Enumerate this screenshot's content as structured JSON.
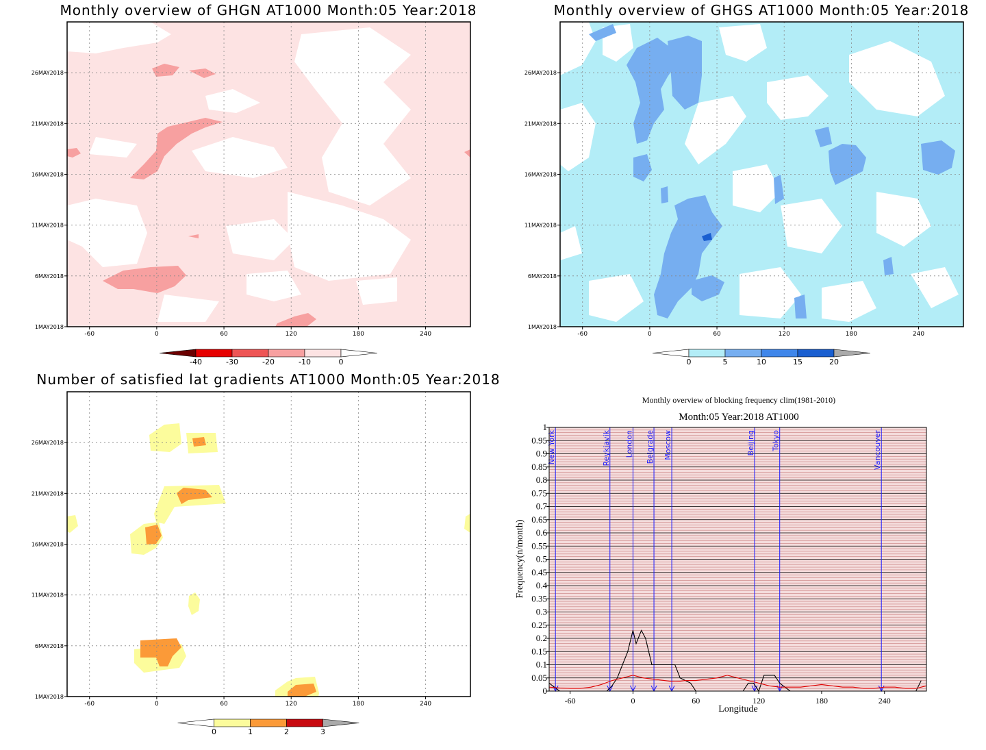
{
  "panels": {
    "ghgn": {
      "title": "Monthly overview of GHGN AT1000 Month:05 Year:2018",
      "colorbar": {
        "labels": [
          "-40",
          "-30",
          "-20",
          "-10",
          "0"
        ],
        "colors": [
          "#6b0000",
          "#e60000",
          "#ee5555",
          "#f7a0a0",
          "#fde3e3",
          "#ffffff"
        ]
      }
    },
    "ghgs": {
      "title": "Monthly overview of GHGS AT1000 Month:05 Year:2018",
      "colorbar": {
        "labels": [
          "0",
          "5",
          "10",
          "15",
          "20"
        ],
        "colors": [
          "#ffffff",
          "#b3edf7",
          "#76aef0",
          "#3f86ea",
          "#1a5fd0",
          "#aaaaaa"
        ]
      }
    },
    "nsat": {
      "title": "Number of satisfied lat gradients AT1000 Month:05 Year:2018",
      "colorbar": {
        "labels": [
          "0",
          "1",
          "2",
          "3"
        ],
        "colors": [
          "#ffffff",
          "#fcfc9c",
          "#fb9a38",
          "#c80a10",
          "#aaaaaa"
        ]
      }
    },
    "freq": {
      "title_line1": "Monthly overview of blocking frequency clim(1981-2010)",
      "title_line2": "Month:05 Year:2018  AT1000",
      "xlabel": "Longitude",
      "ylabel": "Frequency(n/month)"
    }
  },
  "map_axes": {
    "date_ticks": [
      "1MAY2018",
      "6MAY2018",
      "11MAY2018",
      "16MAY2018",
      "21MAY2018",
      "26MAY2018"
    ],
    "lon_ticks": [
      "-60",
      "0",
      "60",
      "120",
      "180",
      "240"
    ],
    "lon_range": [
      -80,
      280
    ],
    "day_range": [
      1,
      31
    ]
  },
  "chart_data": [
    {
      "type": "heatmap",
      "title": "Monthly overview of GHGN AT1000 Month:05 Year:2018",
      "x_range": [
        -80,
        280
      ],
      "x_ticks": [
        -60,
        0,
        60,
        120,
        180,
        240
      ],
      "y_ticks": [
        "1MAY2018",
        "6MAY2018",
        "11MAY2018",
        "16MAY2018",
        "21MAY2018",
        "26MAY2018"
      ],
      "levels": [
        -40,
        -30,
        -20,
        -10,
        0
      ],
      "background_level": "-10 to 0",
      "regions": [
        {
          "lon": 0,
          "date": "6MAY2018",
          "level": "-20 to -10"
        },
        {
          "lon": 20,
          "date": "18MAY2018",
          "level": "-20 to -10"
        },
        {
          "lon": 50,
          "date": "25MAY2018",
          "level": "-20 to -10"
        },
        {
          "lon": 125,
          "date": "1MAY2018",
          "level": "-20 to -10"
        },
        {
          "lon": -75,
          "date": "18MAY2018",
          "level": "-20 to -10"
        }
      ]
    },
    {
      "type": "heatmap",
      "title": "Monthly overview of GHGS AT1000 Month:05 Year:2018",
      "x_range": [
        -80,
        280
      ],
      "x_ticks": [
        -60,
        0,
        60,
        120,
        180,
        240
      ],
      "y_ticks": [
        "1MAY2018",
        "6MAY2018",
        "11MAY2018",
        "16MAY2018",
        "21MAY2018",
        "26MAY2018"
      ],
      "levels": [
        0,
        5,
        10,
        15,
        20
      ],
      "background_level": "0 to 5",
      "regions": [
        {
          "lon": 30,
          "date": "24MAY2018",
          "level": "5 to 10"
        },
        {
          "lon": 40,
          "date": "10MAY2018",
          "level": "5 to 10"
        },
        {
          "lon": 50,
          "date": "11MAY2018",
          "level": "10 to 15"
        },
        {
          "lon": 140,
          "date": "17MAY2018",
          "level": "5 to 10"
        },
        {
          "lon": 265,
          "date": "17MAY2018",
          "level": "5 to 10"
        }
      ]
    },
    {
      "type": "heatmap",
      "title": "Number of satisfied lat gradients AT1000 Month:05 Year:2018",
      "x_range": [
        -80,
        280
      ],
      "x_ticks": [
        -60,
        0,
        60,
        120,
        180,
        240
      ],
      "y_ticks": [
        "1MAY2018",
        "6MAY2018",
        "11MAY2018",
        "16MAY2018",
        "21MAY2018",
        "26MAY2018"
      ],
      "levels": [
        0,
        1,
        2,
        3
      ],
      "regions": [
        {
          "lon": 5,
          "date": "6MAY2018",
          "level": "1 to 2"
        },
        {
          "lon": 40,
          "date": "21MAY2018",
          "level": "1 to 2"
        },
        {
          "lon": 38,
          "date": "26MAY2018",
          "level": "1 to 2"
        },
        {
          "lon": -5,
          "date": "17MAY2018",
          "level": "1 to 2"
        },
        {
          "lon": 130,
          "date": "1MAY2018",
          "level": "1 to 2"
        },
        {
          "lon": 35,
          "date": "11MAY2018",
          "level": "0 to 1"
        }
      ]
    },
    {
      "type": "line",
      "title": "Monthly overview of blocking frequency clim(1981-2010)",
      "subtitle": "Month:05 Year:2018  AT1000",
      "xlabel": "Longitude",
      "ylabel": "Frequency(n/month)",
      "xlim": [
        -80,
        280
      ],
      "ylim": [
        0,
        1
      ],
      "x_ticks": [
        -60,
        0,
        60,
        120,
        180,
        240
      ],
      "y_ticks": [
        "0",
        "0.05",
        "0.1",
        "0.15",
        "0.2",
        "0.25",
        "0.3",
        "0.35",
        "0.4",
        "0.45",
        "0.5",
        "0.55",
        "0.6",
        "0.65",
        "0.7",
        "0.75",
        "0.8",
        "0.85",
        "0.9",
        "0.95",
        "1"
      ],
      "series": [
        {
          "color": "#000000",
          "x": [
            -80,
            -70,
            -60,
            -50,
            -40,
            -30,
            -25,
            -20,
            -15,
            -10,
            -5,
            0,
            3,
            5,
            8,
            12,
            15,
            18,
            20,
            25,
            30,
            40,
            45,
            55,
            60,
            70,
            80,
            90,
            100,
            105,
            110,
            115,
            120,
            125,
            130,
            135,
            140,
            150,
            160,
            170,
            180,
            200,
            220,
            240,
            250,
            260,
            270,
            275
          ],
          "y": [
            0.03,
            0,
            0,
            0,
            0,
            0,
            0,
            0.02,
            0.05,
            0.1,
            0.15,
            0.23,
            0.18,
            0.2,
            0.23,
            0.2,
            0.15,
            0.1,
            0.1,
            0.1,
            0.1,
            0.1,
            0.05,
            0.03,
            0,
            0,
            0,
            0,
            0,
            0,
            0.03,
            0.03,
            0,
            0.06,
            0.06,
            0.06,
            0.03,
            0,
            0,
            0,
            0,
            0,
            0,
            0,
            0,
            0,
            0,
            0.04
          ]
        },
        {
          "color": "#e00000",
          "x": [
            -80,
            -70,
            -60,
            -50,
            -40,
            -30,
            -20,
            -10,
            0,
            10,
            20,
            30,
            40,
            50,
            60,
            70,
            80,
            90,
            100,
            110,
            120,
            130,
            140,
            150,
            160,
            170,
            180,
            190,
            200,
            210,
            220,
            230,
            240,
            250,
            260,
            270,
            280
          ],
          "y": [
            0.015,
            0.012,
            0.01,
            0.01,
            0.015,
            0.025,
            0.04,
            0.05,
            0.06,
            0.05,
            0.045,
            0.04,
            0.035,
            0.04,
            0.04,
            0.045,
            0.05,
            0.06,
            0.05,
            0.04,
            0.03,
            0.02,
            0.015,
            0.015,
            0.015,
            0.02,
            0.025,
            0.02,
            0.015,
            0.015,
            0.01,
            0.01,
            0.015,
            0.015,
            0.01,
            0.01,
            0.02
          ]
        }
      ],
      "reference_cities": [
        {
          "name": "New York",
          "lon": -74
        },
        {
          "name": "Reykjavik",
          "lon": -22
        },
        {
          "name": "London",
          "lon": 0
        },
        {
          "name": "Belgrade",
          "lon": 20
        },
        {
          "name": "Moscow",
          "lon": 37
        },
        {
          "name": "Beijing",
          "lon": 116
        },
        {
          "name": "Tokyo",
          "lon": 140
        },
        {
          "name": "Vancouver",
          "lon": 237
        }
      ]
    }
  ]
}
